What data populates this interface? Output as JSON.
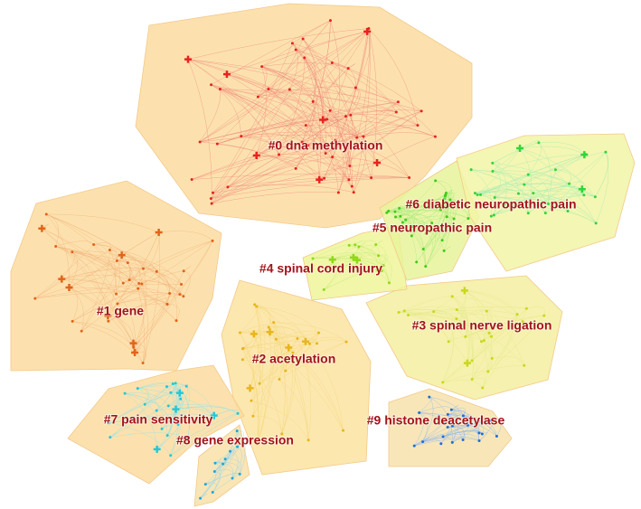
{
  "clusters": [
    {
      "label": "#0 dna methylation"
    },
    {
      "label": "#1 gene"
    },
    {
      "label": "#2 acetylation"
    },
    {
      "label": "#3 spinal nerve ligation"
    },
    {
      "label": "#4 spinal cord injury"
    },
    {
      "label": "#5 neuropathic pain"
    },
    {
      "label": "#6 diabetic neuropathic pain"
    },
    {
      "label": "#7 pain sensitivity"
    },
    {
      "label": "#8 gene expression"
    },
    {
      "label": "#9 histone deacetylase"
    }
  ]
}
